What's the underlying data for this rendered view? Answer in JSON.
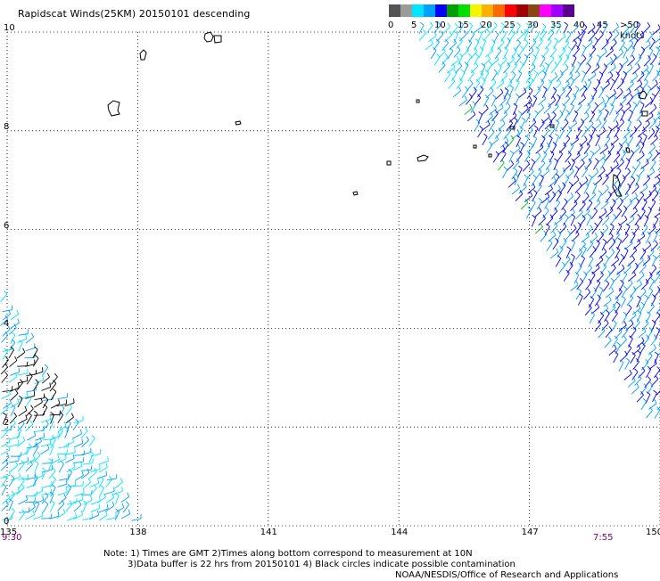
{
  "title": "Rapidscat Winds(25KM) 20150101 descending",
  "legend": {
    "colors": [
      "#555555",
      "#9b9b9b",
      "#00e5ff",
      "#00a0ff",
      "#0000ff",
      "#00a000",
      "#00e000",
      "#f5f500",
      "#ffb000",
      "#ff6a00",
      "#ff0000",
      "#a00000",
      "#8b4513",
      "#ff00ff",
      "#a000ff",
      "#5a0090"
    ],
    "labels": [
      {
        "text": "0",
        "at": 0
      },
      {
        "text": "5",
        "at": 2
      },
      {
        "text": "10",
        "at": 4
      },
      {
        "text": "15",
        "at": 6
      },
      {
        "text": "20",
        "at": 8
      },
      {
        "text": "25",
        "at": 10
      },
      {
        "text": "30",
        "at": 12
      },
      {
        "text": "35",
        "at": 14
      },
      {
        "text": "40",
        "at": 16
      },
      {
        "text": "45",
        "at": 18
      },
      {
        "text": ">50 knots",
        "at": 20
      }
    ]
  },
  "axes": {
    "x_ticks": [
      "135",
      "138",
      "141",
      "144",
      "147",
      "150"
    ],
    "y_ticks": [
      "10",
      "8",
      "6",
      "4",
      "2",
      "0"
    ],
    "lon_range": [
      135,
      150
    ],
    "lat_range": [
      0,
      10
    ]
  },
  "times": {
    "left": "9:30",
    "right": "7:55"
  },
  "notes": {
    "line1": "Note: 1) Times are GMT 2)Times along bottom correspond to measurement at 10N",
    "line2": "3)Data buffer is 22 hrs from 20150101 4) Black circles indicate possible contamination",
    "credit": "NOAA/NESDIS/Office of Research and Applications"
  },
  "colors": {
    "grid": "#000000",
    "coast": "#000000",
    "wind_low": "#00e5ff",
    "wind_mid": "#00a0ff",
    "wind_high": "#0000ff",
    "wind_green": "#00c000",
    "wind_black": "#000000"
  }
}
